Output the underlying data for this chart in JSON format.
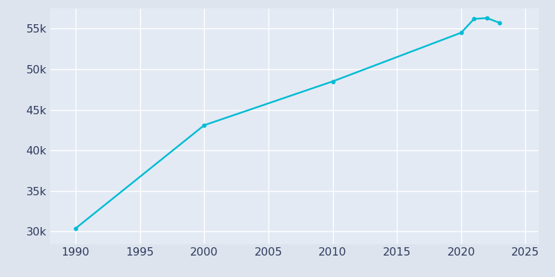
{
  "years": [
    1990,
    2000,
    2010,
    2020,
    2021,
    2022,
    2023
  ],
  "population": [
    30400,
    43100,
    48500,
    54500,
    56200,
    56300,
    55700
  ],
  "line_color": "#00bcd4",
  "marker": "o",
  "marker_size": 3.5,
  "line_width": 1.8,
  "fig_background_color": "#dde4ee",
  "plot_background_color": "#e4eaf4",
  "grid_color": "#ffffff",
  "xlim": [
    1988,
    2026
  ],
  "ylim": [
    28500,
    57500
  ],
  "xticks": [
    1990,
    1995,
    2000,
    2005,
    2010,
    2015,
    2020,
    2025
  ],
  "yticks": [
    30000,
    35000,
    40000,
    45000,
    50000,
    55000
  ],
  "ytick_labels": [
    "30k",
    "35k",
    "40k",
    "45k",
    "50k",
    "55k"
  ],
  "label_color": "#2d3a5c",
  "label_fontsize": 11.5
}
